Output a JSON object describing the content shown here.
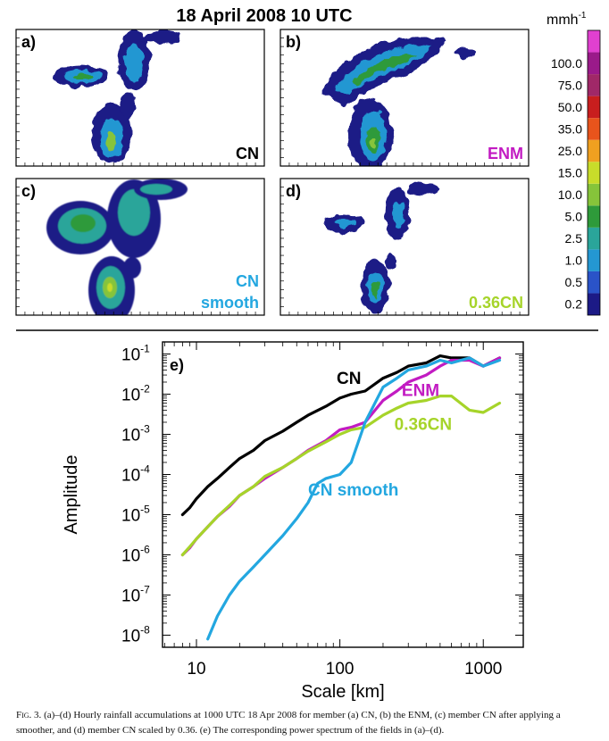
{
  "figure": {
    "title": "18 April 2008 10 UTC",
    "caption_label": "Fig. 3.",
    "caption_text": "(a)–(d) Hourly rainfall accumulations at 1000 UTC 18 Apr 2008 for member (a) CN, (b) the ENM, (c) member CN after applying a smoother, and (d) member CN scaled by 0.36. (e) The corresponding power spectrum of the fields in (a)–(d)."
  },
  "maps": [
    {
      "panel": "a)",
      "label_lines": [
        "CN"
      ],
      "label_color": "#000000"
    },
    {
      "panel": "b)",
      "label_lines": [
        "ENM"
      ],
      "label_color": "#c21bc2"
    },
    {
      "panel": "c)",
      "label_lines": [
        "CN",
        "smooth"
      ],
      "label_color": "#23a7e0"
    },
    {
      "panel": "d)",
      "label_lines": [
        "0.36CN"
      ],
      "label_color": "#a6d42a"
    }
  ],
  "colorbar": {
    "unit": "mmh",
    "unit_exp": "-1",
    "levels": [
      "0.2",
      "0.5",
      "1.0",
      "2.5",
      "5.0",
      "10.0",
      "15.0",
      "25.0",
      "35.0",
      "50.0",
      "75.0",
      "100.0"
    ],
    "colors": [
      "#1c1a86",
      "#2a53c8",
      "#2497d2",
      "#2aa59a",
      "#2e9a3a",
      "#86c43a",
      "#c8dc2a",
      "#f0a020",
      "#e8541c",
      "#c81e1e",
      "#a02868",
      "#9a1a8a",
      "#e040d0"
    ]
  },
  "chart_data": {
    "type": "line",
    "panel": "e)",
    "xlabel": "Scale [km]",
    "ylabel": "Amplitude",
    "xscale": "log",
    "yscale": "log",
    "xlim": [
      5.8,
      1900
    ],
    "ylim": [
      5e-09,
      0.2
    ],
    "x_ticks": [
      "10",
      "100",
      "1000"
    ],
    "y_ticks": [
      "10^-1",
      "10^-2",
      "10^-3",
      "10^-4",
      "10^-5",
      "10^-6",
      "10^-7",
      "10^-8"
    ],
    "grid": false,
    "series": [
      {
        "name": "CN",
        "color": "#000000",
        "x": [
          8,
          9,
          10,
          12,
          14,
          17,
          20,
          25,
          30,
          40,
          50,
          60,
          80,
          100,
          120,
          150,
          200,
          250,
          300,
          400,
          500,
          600,
          800,
          1000,
          1300
        ],
        "y": [
          1e-05,
          1.5e-05,
          2.5e-05,
          5e-05,
          8e-05,
          0.00015,
          0.00025,
          0.0004,
          0.0007,
          0.0012,
          0.002,
          0.003,
          0.005,
          0.008,
          0.01,
          0.012,
          0.025,
          0.035,
          0.05,
          0.06,
          0.09,
          0.08,
          0.08,
          0.05,
          0.08
        ]
      },
      {
        "name": "ENM",
        "color": "#c21bc2",
        "x": [
          8,
          9,
          10,
          12,
          14,
          17,
          20,
          25,
          30,
          40,
          50,
          60,
          80,
          100,
          120,
          150,
          200,
          250,
          300,
          400,
          500,
          600,
          800,
          1000,
          1300
        ],
        "y": [
          1e-06,
          1.5e-06,
          2.5e-06,
          5e-06,
          9e-06,
          1.6e-05,
          3e-05,
          5e-05,
          8e-05,
          0.00015,
          0.00025,
          0.0004,
          0.0007,
          0.0013,
          0.0015,
          0.002,
          0.007,
          0.012,
          0.02,
          0.03,
          0.05,
          0.07,
          0.07,
          0.05,
          0.08
        ]
      },
      {
        "name": "0.36CN",
        "color": "#a6d42a",
        "x": [
          8,
          9,
          10,
          12,
          14,
          17,
          20,
          25,
          30,
          40,
          50,
          60,
          80,
          100,
          120,
          150,
          200,
          250,
          300,
          400,
          500,
          600,
          800,
          1000,
          1300
        ],
        "y": [
          1e-06,
          1.6e-06,
          2.5e-06,
          5e-06,
          9e-06,
          1.7e-05,
          3e-05,
          5e-05,
          9e-05,
          0.00015,
          0.00025,
          0.00038,
          0.00065,
          0.001,
          0.0013,
          0.0015,
          0.003,
          0.0045,
          0.006,
          0.007,
          0.009,
          0.009,
          0.004,
          0.0035,
          0.006
        ]
      },
      {
        "name": "CN smooth",
        "color": "#23a7e0",
        "x": [
          12,
          14,
          17,
          20,
          25,
          30,
          40,
          50,
          60,
          70,
          80,
          100,
          120,
          150,
          200,
          250,
          300,
          400,
          500,
          600,
          800,
          1000,
          1300
        ],
        "y": [
          8e-09,
          3e-08,
          1e-07,
          2.2e-07,
          5e-07,
          1e-06,
          3e-06,
          8e-06,
          2e-05,
          6e-05,
          8e-05,
          0.0001,
          0.0002,
          0.002,
          0.015,
          0.025,
          0.04,
          0.05,
          0.07,
          0.06,
          0.08,
          0.05,
          0.07
        ]
      }
    ],
    "series_labels": [
      {
        "text": "CN",
        "color": "#000000",
        "x": 95,
        "y": 0.018
      },
      {
        "text": "ENM",
        "color": "#c21bc2",
        "x": 270,
        "y": 0.009
      },
      {
        "text": "0.36CN",
        "color": "#a6d42a",
        "x": 240,
        "y": 0.0013
      },
      {
        "text": "CN smooth",
        "color": "#23a7e0",
        "x": 60,
        "y": 3e-05
      }
    ]
  }
}
